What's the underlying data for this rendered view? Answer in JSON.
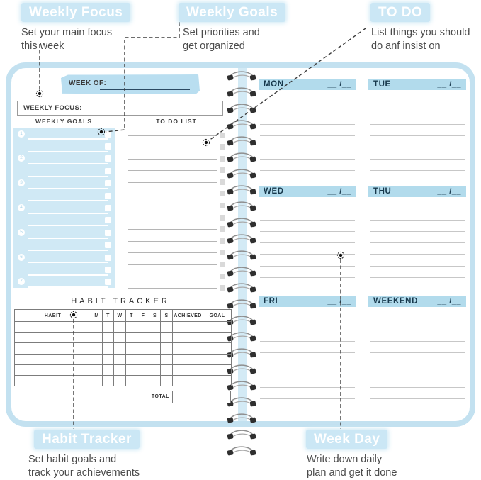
{
  "annotations": {
    "top": [
      {
        "label": "Weekly Focus",
        "desc": "Set your main focus\nthis week"
      },
      {
        "label": "Weekly Goals",
        "desc": "Set priorities and\nget organized"
      },
      {
        "label": "TO DO",
        "desc": "List things you should\ndo anf insist on"
      }
    ],
    "bottom": [
      {
        "label": "Habit Tracker",
        "desc": "Set habit goals and\ntrack your achievements"
      },
      {
        "label": "Week Day",
        "desc": "Write down daily\nplan and get it done"
      }
    ]
  },
  "planner": {
    "week_of_label": "WEEK OF:",
    "weekly_focus_label": "WEEKLY FOCUS:",
    "goals_header": "WEEKLY GOALS",
    "todo_header": "TO DO LIST",
    "goals_rows": 13,
    "goal_numbers": [
      "1",
      "2",
      "3",
      "4",
      "5",
      "6",
      "7"
    ],
    "todo_rows": 14,
    "habit_tracker": {
      "title": "HABIT TRACKER",
      "columns": [
        "HABIT",
        "M",
        "T",
        "W",
        "T",
        "F",
        "S",
        "S",
        "ACHIEVED",
        "GOAL"
      ],
      "rows": 6,
      "total_label": "TOTAL"
    },
    "days": [
      {
        "name": "MON",
        "date": "__ /__"
      },
      {
        "name": "TUE",
        "date": "__ /__"
      },
      {
        "name": "WED",
        "date": "__ /__"
      },
      {
        "name": "THU",
        "date": "__ /__"
      },
      {
        "name": "FRI",
        "date": "__ /__"
      },
      {
        "name": "WEEKEND",
        "date": "__ /__"
      }
    ],
    "lines_per_day": 8,
    "spiral_loops": 24
  },
  "colors": {
    "badge_blue": "#cbe7f5",
    "cover_border": "#c3e1f0",
    "day_bar_blue": "#b2dbec",
    "goals_box_blue": "#d0e9f5",
    "highlight_blue": "#b9def0",
    "day_text": "#17384c",
    "annotation_text": "#4b4b4b"
  }
}
